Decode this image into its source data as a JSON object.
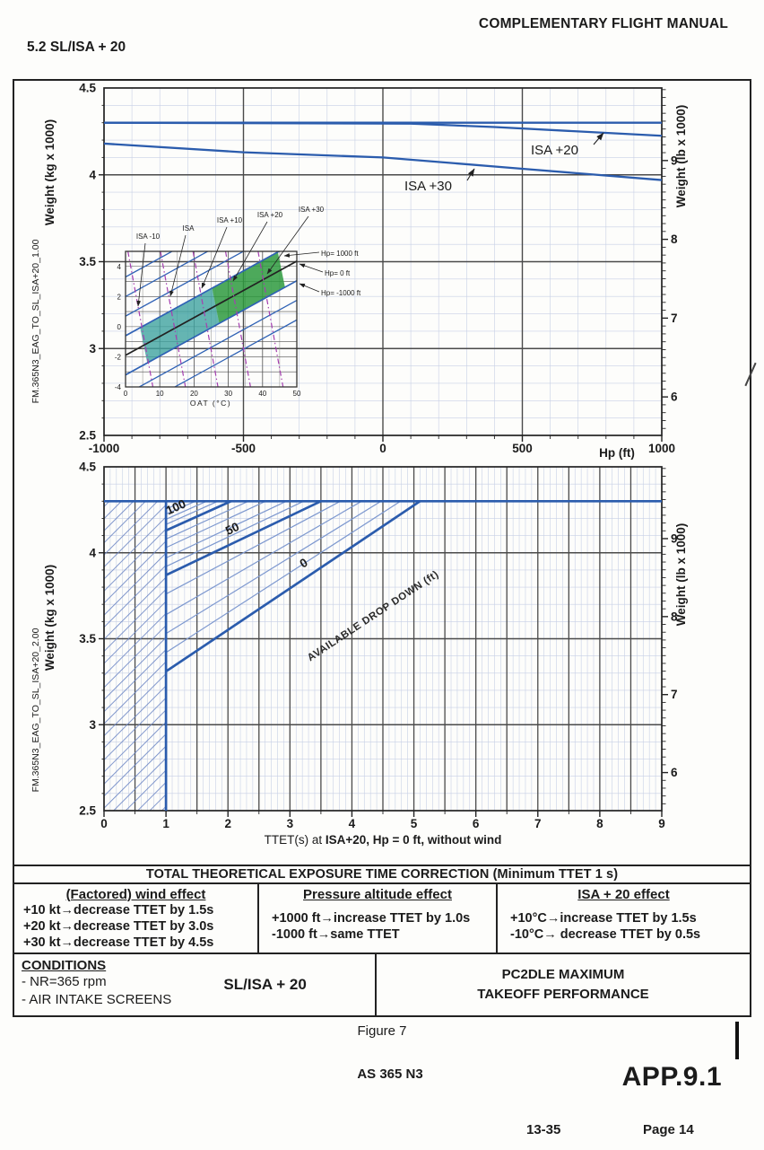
{
  "header": {
    "manual_title": "COMPLEMENTARY FLIGHT MANUAL",
    "section_title": "5.2 SL/ISA + 20"
  },
  "colors": {
    "curve_blue": "#2b5cad",
    "thin_blue": "#7d98cf",
    "grid_major": "#4a4a4a",
    "grid_minor": "#c7d0e6",
    "hatch_blue": "#6c86c4",
    "purple": "#a53fb0",
    "teal_band": "#3fa3a0",
    "green_band": "#2e9a3e",
    "ink": "#1b1b1b"
  },
  "chart_data": [
    {
      "type": "line",
      "name": "weight-vs-pressure-altitude",
      "xlabel": "Hp (ft)",
      "ylabel_left": "Weight (kg x 1000)",
      "ylabel_right": "Weight (lb x 1000)",
      "xlim": [
        -1000,
        1000
      ],
      "ylim": [
        2.5,
        4.5
      ],
      "xticks": [
        "-1000",
        "-500",
        "0",
        "500",
        "1000"
      ],
      "yticks_left": [
        "2.5",
        "3",
        "3.5",
        "4",
        "4.5"
      ],
      "yticks_right": [
        "6",
        "7",
        "8",
        "9"
      ],
      "series": [
        {
          "name": "max-weight",
          "x": [
            -1000,
            1000
          ],
          "y": [
            4.3,
            4.3
          ]
        },
        {
          "name": "ISA +20",
          "x": [
            -1000,
            100,
            400,
            700,
            1000
          ],
          "y": [
            4.3,
            4.295,
            4.275,
            4.25,
            4.225
          ]
        },
        {
          "name": "ISA +30",
          "x": [
            -1000,
            -500,
            0,
            500,
            1000
          ],
          "y": [
            4.18,
            4.13,
            4.1,
            4.035,
            3.97
          ]
        }
      ],
      "annotations": [
        "ISA +20",
        "ISA +30"
      ],
      "side_label": "FM.365N3_EAG_TO_SL_ISA+20_1.00"
    },
    {
      "type": "line",
      "name": "oat-conversion-inset",
      "xlabel": "OAT (°C)",
      "xlim": [
        0,
        50
      ],
      "ylim": [
        -4,
        5
      ],
      "xticks": [
        "0",
        "10",
        "20",
        "30",
        "40",
        "50"
      ],
      "yticks": [
        "-4",
        "-2",
        "0",
        "2",
        "4"
      ],
      "isa_lines": [
        "ISA -10",
        "ISA",
        "ISA +10",
        "ISA +20",
        "ISA +30"
      ],
      "hp_lines": [
        "Hp= 1000 ft",
        "Hp= 0 ft",
        "Hp= -1000 ft"
      ]
    },
    {
      "type": "line",
      "name": "weight-vs-ttet",
      "xlabel_prefix": "TTET(s) at ",
      "xlabel_bold": "ISA+20, Hp = 0 ft, without wind",
      "ylabel_left": "Weight (kg x 1000)",
      "ylabel_right": "Weight (lb x 1000)",
      "xlim": [
        0,
        9
      ],
      "ylim": [
        2.5,
        4.5
      ],
      "xticks": [
        "0",
        "1",
        "2",
        "3",
        "4",
        "5",
        "6",
        "7",
        "8",
        "9"
      ],
      "yticks_left": [
        "2.5",
        "3",
        "3.5",
        "4",
        "4.5"
      ],
      "yticks_right": [
        "6",
        "7",
        "8",
        "9"
      ],
      "max_weight": 4.3,
      "min_ttet": 1,
      "drop_down_label": "AVAILABLE DROP DOWN (ft)",
      "drop_down_lines": [
        {
          "label": "100",
          "start": [
            1,
            4.13
          ],
          "end": [
            2.05,
            4.3
          ]
        },
        {
          "label": "50",
          "start": [
            1,
            3.87
          ],
          "end": [
            3.5,
            4.3
          ]
        },
        {
          "label": "0",
          "start": [
            1,
            3.31
          ],
          "end": [
            5.1,
            4.3
          ]
        }
      ],
      "side_label": "FM.365N3_EAG_TO_SL_ISA+20_2.00"
    }
  ],
  "correction_table": {
    "title": "TOTAL THEORETICAL EXPOSURE TIME CORRECTION (Minimum TTET 1 s)",
    "columns": [
      {
        "header": "(Factored) wind effect",
        "rows": [
          "+10 kt→decrease TTET by 1.5s",
          "+20 kt→decrease TTET by 3.0s",
          "+30 kt→decrease TTET by 4.5s"
        ]
      },
      {
        "header": "Pressure altitude effect",
        "rows": [
          "+1000 ft→increase TTET by 1.0s",
          "-1000 ft→same TTET"
        ]
      },
      {
        "header": "ISA + 20 effect",
        "rows": [
          "+10°C→increase TTET by 1.5s",
          "-10°C→ decrease TTET by 0.5s"
        ]
      }
    ]
  },
  "conditions_box": {
    "conditions_header": "CONDITIONS",
    "conditions": [
      "- NR=365 rpm",
      "- AIR INTAKE SCREENS"
    ],
    "config_label": "SL/ISA + 20",
    "performance_line1": "PC2DLE MAXIMUM",
    "performance_line2": "TAKEOFF PERFORMANCE"
  },
  "footer": {
    "figure_caption": "Figure 7",
    "aircraft_model": "AS 365 N3",
    "appendix_ref": "APP.9.1",
    "doc_ref": "13-35",
    "page_label": "Page 14"
  },
  "revision_marks": {
    "bar_icon": "change-bar",
    "slash_icon": "slash-mark"
  }
}
